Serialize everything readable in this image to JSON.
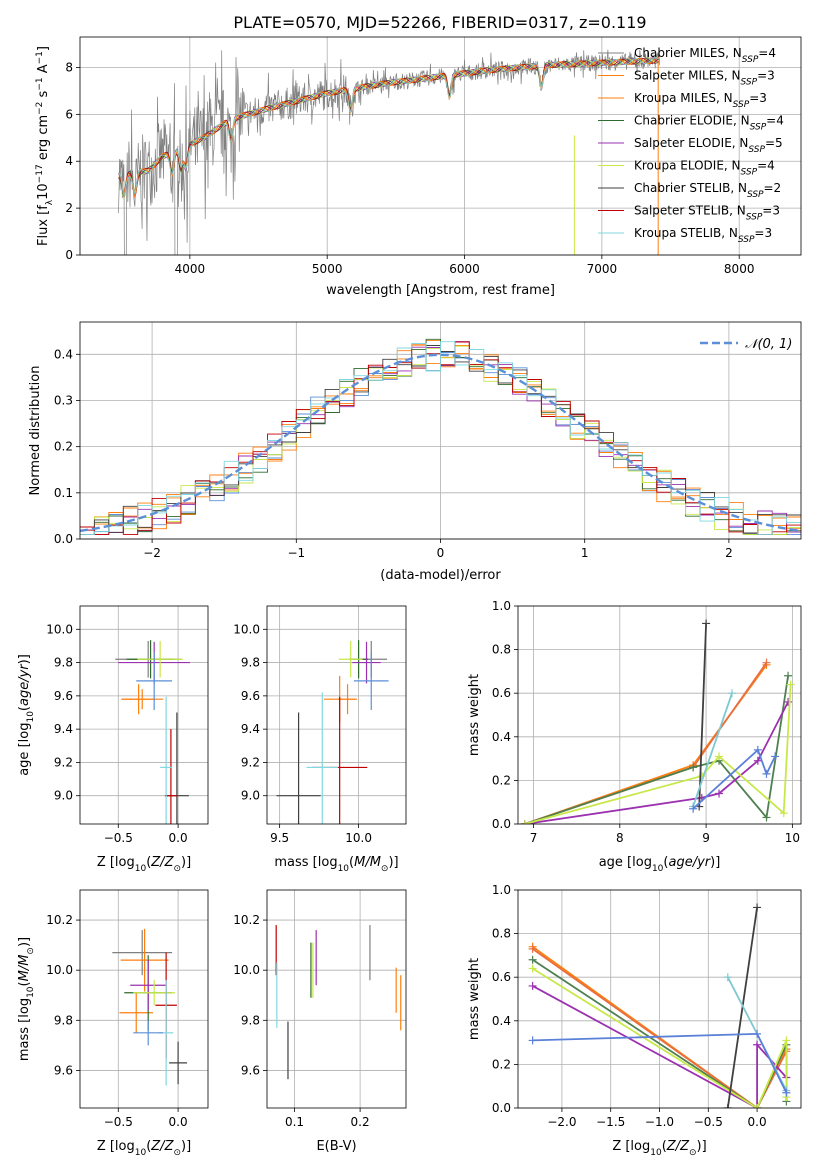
{
  "figure": {
    "title": "PLATE=0570, MJD=52266, FIBERID=0317, z=0.119"
  },
  "colors": {
    "model_colors": [
      "#808080",
      "#ff7f0e",
      "#ff7f0e",
      "#2f6b2f",
      "#9b30b0",
      "#c8e84a",
      "#404040",
      "#c00000",
      "#80d8e0"
    ],
    "normal_fit": "#5b8fd8",
    "spectrum": "#808080"
  },
  "chart_data": [
    {
      "id": "spectrum",
      "type": "line",
      "xlabel": "wavelength [Angstrom, rest frame]",
      "ylabel": "Flux [f_λ 10^-17 erg cm^-2 s^-1 A^-1]",
      "xlim": [
        3200,
        8450
      ],
      "ylim": [
        0,
        9.3
      ],
      "xticks": [
        4000,
        5000,
        6000,
        7000,
        8000
      ],
      "yticks": [
        0,
        2,
        4,
        6,
        8
      ],
      "legend_position": "top-right",
      "legend": [
        "Chabrier MILES, N_SSP=4",
        "Salpeter MILES, N_SSP=3",
        "Kroupa MILES, N_SSP=3",
        "Chabrier ELODIE, N_SSP=4",
        "Salpeter ELODIE, N_SSP=5",
        "Kroupa ELODIE, N_SSP=4",
        "Chabrier STELIB, N_SSP=2",
        "Salpeter STELIB, N_SSP=3",
        "Kroupa STELIB, N_SSP=3"
      ],
      "continuum": {
        "x": [
          3500,
          3700,
          3800,
          3950,
          4100,
          4300,
          4600,
          5000,
          5400,
          5800,
          6200,
          6600,
          7000,
          7400
        ],
        "y": [
          3.4,
          3.6,
          4.2,
          4.6,
          5.0,
          5.8,
          6.3,
          6.9,
          7.3,
          7.6,
          7.9,
          8.1,
          8.2,
          8.3
        ]
      },
      "dips": [
        3520,
        3600,
        3870,
        3935,
        3970,
        4300,
        5170,
        5890,
        6560
      ]
    },
    {
      "id": "residuals",
      "type": "bar",
      "xlabel": "(data-model)/error",
      "ylabel": "Normed distribution",
      "xlim": [
        -2.5,
        2.5
      ],
      "ylim": [
        0,
        0.47
      ],
      "xticks": [
        -2,
        -1,
        0,
        1,
        2
      ],
      "yticks": [
        0.0,
        0.1,
        0.2,
        0.3,
        0.4
      ],
      "bins": [
        -2.5,
        2.5,
        50
      ],
      "base_sigma": 1,
      "legend": [
        "𝒩(0, 1)"
      ],
      "legend_position": "top-right"
    },
    {
      "id": "age-vs-Z",
      "type": "scatter",
      "xlabel": "Z [log10(Z/Z⊙)]",
      "ylabel": "age [log10(age/yr)]",
      "xlim": [
        -0.82,
        0.25
      ],
      "ylim": [
        8.83,
        10.14
      ],
      "xticks": [
        -0.5,
        0.0
      ],
      "yticks": [
        9.0,
        9.2,
        9.4,
        9.6,
        9.8,
        10.0
      ],
      "points": [
        {
          "x": -0.25,
          "y": 9.82,
          "xerr": 0.55,
          "yerr": 0.22
        },
        {
          "x": -0.3,
          "y": 9.58,
          "xerr": 0.35,
          "yerr": 0.12
        },
        {
          "x": -0.33,
          "y": 9.58,
          "xerr": 0.28,
          "yerr": 0.18
        },
        {
          "x": -0.23,
          "y": 9.82,
          "xerr": 0.4,
          "yerr": 0.23
        },
        {
          "x": -0.2,
          "y": 9.8,
          "xerr": 0.6,
          "yerr": 0.25
        },
        {
          "x": -0.15,
          "y": 9.82,
          "xerr": 0.38,
          "yerr": 0.22
        },
        {
          "x": -0.01,
          "y": 9.0,
          "xerr": 0.2,
          "yerr": 1.0
        },
        {
          "x": -0.06,
          "y": 9.0,
          "xerr": 0.1,
          "yerr": 0.8
        },
        {
          "x": -0.1,
          "y": 9.17,
          "xerr": 0.1,
          "yerr": 0.85
        },
        {
          "x": -0.2,
          "y": 9.69,
          "xerr": 0.3,
          "yerr": 0.35
        }
      ]
    },
    {
      "id": "age-vs-mass",
      "type": "scatter",
      "xlabel": "mass [log10(M/M⊙)]",
      "ylabel": "",
      "xlim": [
        9.42,
        10.3
      ],
      "ylim": [
        8.83,
        10.14
      ],
      "xticks": [
        9.5,
        10.0
      ],
      "yticks": [
        9.0,
        9.2,
        9.4,
        9.6,
        9.8,
        10.0
      ],
      "points": [
        {
          "x": 10.08,
          "y": 9.82,
          "xerr": 0.2,
          "yerr": 0.22
        },
        {
          "x": 9.88,
          "y": 9.58,
          "xerr": 0.2,
          "yerr": 0.28
        },
        {
          "x": 9.93,
          "y": 9.58,
          "xerr": 0.12,
          "yerr": 0.18
        },
        {
          "x": 10.0,
          "y": 9.82,
          "xerr": 0.12,
          "yerr": 0.23
        },
        {
          "x": 10.05,
          "y": 9.8,
          "xerr": 0.18,
          "yerr": 0.25
        },
        {
          "x": 9.95,
          "y": 9.82,
          "xerr": 0.15,
          "yerr": 0.22
        },
        {
          "x": 9.62,
          "y": 9.0,
          "xerr": 0.28,
          "yerr": 1.0
        },
        {
          "x": 9.88,
          "y": 9.17,
          "xerr": 0.35,
          "yerr": 0.85
        },
        {
          "x": 9.77,
          "y": 9.17,
          "xerr": 0.2,
          "yerr": 0.9
        },
        {
          "x": 10.08,
          "y": 9.69,
          "xerr": 0.22,
          "yerr": 0.35
        }
      ]
    },
    {
      "id": "weight-vs-age",
      "type": "line",
      "xlabel": "age [log10(age/yr)]",
      "ylabel": "mass weight",
      "xlim": [
        6.82,
        10.1
      ],
      "ylim": [
        0,
        1.0
      ],
      "xticks": [
        7,
        8,
        9,
        10
      ],
      "yticks": [
        0.0,
        0.2,
        0.4,
        0.6,
        0.8,
        1.0
      ],
      "series": [
        {
          "x": [
            6.9,
            8.85,
            9.7
          ],
          "y": [
            0.0,
            0.27,
            0.73
          ]
        },
        {
          "x": [
            6.9,
            8.85,
            9.7
          ],
          "y": [
            0.0,
            0.26,
            0.74
          ]
        },
        {
          "x": [
            6.9,
            8.85,
            9.15,
            9.7,
            9.95
          ],
          "y": [
            0.0,
            0.26,
            0.29,
            0.03,
            0.68
          ]
        },
        {
          "x": [
            6.9,
            8.95,
            9.15,
            9.6,
            9.95
          ],
          "y": [
            0.0,
            0.12,
            0.14,
            0.29,
            0.56
          ]
        },
        {
          "x": [
            6.9,
            8.95,
            9.15,
            9.9,
            9.98
          ],
          "y": [
            0.0,
            0.22,
            0.31,
            0.05,
            0.64
          ]
        },
        {
          "x": [
            8.92,
            9.0
          ],
          "y": [
            0.08,
            0.92
          ]
        },
        {
          "x": [
            8.85,
            9.3
          ],
          "y": [
            0.08,
            0.6
          ]
        },
        {
          "x": [
            8.85,
            9.6,
            9.7,
            9.8
          ],
          "y": [
            0.07,
            0.34,
            0.23,
            0.31
          ]
        }
      ]
    },
    {
      "id": "mass-vs-Z",
      "type": "scatter",
      "xlabel": "Z [log10(Z/Z⊙)]",
      "ylabel": "mass [log10(M/M⊙)]",
      "xlim": [
        -0.82,
        0.25
      ],
      "ylim": [
        9.45,
        10.32
      ],
      "xticks": [
        -0.5,
        0.0
      ],
      "yticks": [
        9.6,
        9.8,
        10.0,
        10.2
      ],
      "points": [
        {
          "x": -0.3,
          "y": 10.07,
          "xerr": 0.5,
          "yerr": 0.18
        },
        {
          "x": -0.28,
          "y": 10.04,
          "xerr": 0.4,
          "yerr": 0.25
        },
        {
          "x": -0.35,
          "y": 9.83,
          "xerr": 0.28,
          "yerr": 0.16
        },
        {
          "x": -0.25,
          "y": 9.91,
          "xerr": 0.4,
          "yerr": 0.3
        },
        {
          "x": -0.25,
          "y": 9.94,
          "xerr": 0.3,
          "yerr": 0.2
        },
        {
          "x": -0.2,
          "y": 9.91,
          "xerr": 0.35,
          "yerr": 0.1
        },
        {
          "x": 0.0,
          "y": 9.63,
          "xerr": 0.15,
          "yerr": 0.17
        },
        {
          "x": -0.1,
          "y": 9.86,
          "xerr": 0.18,
          "yerr": 0.42
        },
        {
          "x": -0.1,
          "y": 9.75,
          "xerr": 0.12,
          "yerr": 0.42
        },
        {
          "x": -0.25,
          "y": 9.75,
          "xerr": 0.25,
          "yerr": 0.1
        }
      ]
    },
    {
      "id": "mass-vs-EBV",
      "type": "scatter",
      "xlabel": "E(B-V)",
      "ylabel": "",
      "xlim": [
        0.058,
        0.27
      ],
      "ylim": [
        9.45,
        10.32
      ],
      "xticks": [
        0.1,
        0.2
      ],
      "yticks": [
        9.6,
        9.8,
        10.0,
        10.2
      ],
      "points": [
        {
          "x": 0.215,
          "y": 10.07,
          "yerr": 0.22
        },
        {
          "x": 0.262,
          "y": 9.87,
          "yerr": 0.22
        },
        {
          "x": 0.255,
          "y": 9.92,
          "yerr": 0.18
        },
        {
          "x": 0.125,
          "y": 10.0,
          "yerr": 0.22
        },
        {
          "x": 0.133,
          "y": 10.05,
          "yerr": 0.22
        },
        {
          "x": 0.128,
          "y": 10.0,
          "yerr": 0.22
        },
        {
          "x": 0.09,
          "y": 9.68,
          "yerr": 0.23
        },
        {
          "x": 0.072,
          "y": 10.08,
          "yerr": 0.2
        },
        {
          "x": 0.073,
          "y": 9.9,
          "yerr": 0.26
        }
      ]
    },
    {
      "id": "weight-vs-Z",
      "type": "line",
      "xlabel": "Z [log10(Z/Z⊙)]",
      "ylabel": "mass weight",
      "xlim": [
        -2.45,
        0.45
      ],
      "ylim": [
        0,
        1.0
      ],
      "xticks": [
        -2.0,
        -1.5,
        -1.0,
        -0.5,
        0.0
      ],
      "yticks": [
        0.0,
        0.2,
        0.4,
        0.6,
        0.8,
        1.0
      ],
      "series": [
        {
          "x": [
            -2.3,
            0.0,
            0.3
          ],
          "y": [
            0.74,
            0.0,
            0.27
          ]
        },
        {
          "x": [
            -2.3,
            0.0,
            0.3
          ],
          "y": [
            0.73,
            0.0,
            0.26
          ]
        },
        {
          "x": [
            -2.3,
            0.0,
            0.3,
            0.3
          ],
          "y": [
            0.68,
            0.0,
            0.29,
            0.03
          ]
        },
        {
          "x": [
            -2.3,
            0.0,
            0.0,
            0.3
          ],
          "y": [
            0.56,
            0.0,
            0.29,
            0.14
          ]
        },
        {
          "x": [
            -2.3,
            0.0,
            0.3,
            0.3
          ],
          "y": [
            0.64,
            0.0,
            0.31,
            0.05
          ]
        },
        {
          "x": [
            -0.3,
            0.0
          ],
          "y": [
            0.0,
            0.92
          ]
        },
        {
          "x": [
            -0.3,
            0.3
          ],
          "y": [
            0.6,
            0.08
          ]
        },
        {
          "x": [
            -2.3,
            0.0,
            0.3
          ],
          "y": [
            0.31,
            0.34,
            0.07
          ]
        }
      ]
    }
  ]
}
